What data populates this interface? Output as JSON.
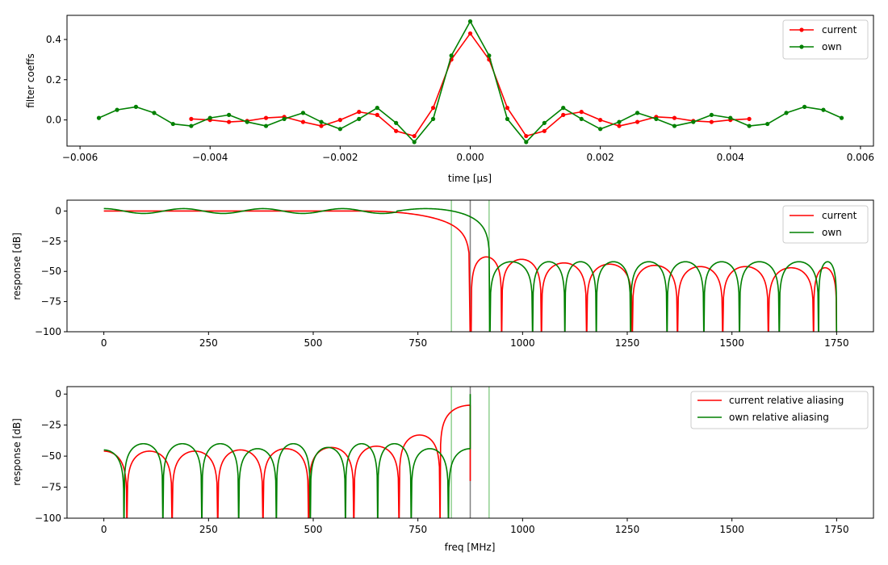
{
  "colors": {
    "current": "#ff0000",
    "own": "#008000",
    "band_edge": "#808080",
    "band_edge_own": "#90d090"
  },
  "chart_data": [
    {
      "type": "line",
      "xlabel": "time [μs]",
      "ylabel": "filter coeffs",
      "xlim": [
        -0.0062,
        0.0062
      ],
      "ylim": [
        -0.13,
        0.52
      ],
      "xticks": [
        -0.006,
        -0.004,
        -0.002,
        0.0,
        0.002,
        0.004,
        0.006
      ],
      "xtick_labels": [
        "−0.006",
        "−0.004",
        "−0.002",
        "0.000",
        "0.002",
        "0.004",
        "0.006"
      ],
      "yticks": [
        0.0,
        0.2,
        0.4
      ],
      "ytick_labels": [
        "0.0",
        "0.2",
        "0.4"
      ],
      "legend": "upper-right",
      "series": [
        {
          "name": "current",
          "color": "#ff0000",
          "markers": true,
          "x": [
            -0.00429,
            -0.004,
            -0.00371,
            -0.00343,
            -0.00314,
            -0.00286,
            -0.00257,
            -0.00229,
            -0.002,
            -0.00171,
            -0.00143,
            -0.00114,
            -0.00086,
            -0.00057,
            -0.00029,
            0.0,
            0.00029,
            0.00057,
            0.00086,
            0.00114,
            0.00143,
            0.00171,
            0.002,
            0.00229,
            0.00257,
            0.00286,
            0.00314,
            0.00343,
            0.00371,
            0.004,
            0.00429
          ],
          "y": [
            0.005,
            0.0,
            -0.01,
            -0.005,
            0.01,
            0.015,
            -0.01,
            -0.03,
            0.0,
            0.04,
            0.025,
            -0.055,
            -0.08,
            0.06,
            0.3,
            0.43,
            0.3,
            0.06,
            -0.08,
            -0.055,
            0.025,
            0.04,
            0.0,
            -0.03,
            -0.01,
            0.015,
            0.01,
            -0.005,
            -0.01,
            0.0,
            0.005
          ]
        },
        {
          "name": "own",
          "color": "#008000",
          "markers": true,
          "x": [
            -0.00571,
            -0.00543,
            -0.00514,
            -0.00486,
            -0.00457,
            -0.00429,
            -0.004,
            -0.00371,
            -0.00343,
            -0.00314,
            -0.00286,
            -0.00257,
            -0.00229,
            -0.002,
            -0.00171,
            -0.00143,
            -0.00114,
            -0.00086,
            -0.00057,
            -0.00029,
            0.0,
            0.00029,
            0.00057,
            0.00086,
            0.00114,
            0.00143,
            0.00171,
            0.002,
            0.00229,
            0.00257,
            0.00286,
            0.00314,
            0.00343,
            0.00371,
            0.004,
            0.00429,
            0.00457,
            0.00486,
            0.00514,
            0.00543,
            0.00571
          ],
          "y": [
            0.01,
            0.05,
            0.065,
            0.035,
            -0.02,
            -0.03,
            0.01,
            0.025,
            -0.01,
            -0.03,
            0.005,
            0.035,
            -0.01,
            -0.045,
            0.005,
            0.06,
            -0.015,
            -0.11,
            0.005,
            0.32,
            0.49,
            0.32,
            0.005,
            -0.11,
            -0.015,
            0.06,
            0.005,
            -0.045,
            -0.01,
            0.035,
            0.005,
            -0.03,
            -0.01,
            0.025,
            0.01,
            -0.03,
            -0.02,
            0.035,
            0.065,
            0.05,
            0.01
          ]
        }
      ]
    },
    {
      "type": "line",
      "xlabel": "",
      "ylabel": "response [dB]",
      "xlim": [
        -88,
        1838
      ],
      "ylim": [
        -100,
        9
      ],
      "xticks": [
        0,
        250,
        500,
        750,
        1000,
        1250,
        1500,
        1750
      ],
      "xtick_labels": [
        "0",
        "250",
        "500",
        "750",
        "1000",
        "1250",
        "1500",
        "1750"
      ],
      "yticks": [
        0,
        -25,
        -50,
        -75,
        -100
      ],
      "ytick_labels": [
        "0",
        "−25",
        "−50",
        "−75",
        "−100"
      ],
      "legend": "upper-right",
      "vlines": [
        {
          "x": 830,
          "color": "#90d090"
        },
        {
          "x": 875,
          "color": "#808080"
        },
        {
          "x": 920,
          "color": "#90d090"
        }
      ],
      "series": [
        {
          "name": "current",
          "color": "#ff0000",
          "passband_end": 620,
          "cutoff": 875,
          "nulls": [
            877,
            950,
            1045,
            1153,
            1262,
            1370,
            1478,
            1587,
            1695
          ],
          "sidelobe_peaks": [
            -38,
            -40,
            -43,
            -44,
            -45,
            -46,
            -46,
            -47,
            -47
          ]
        },
        {
          "name": "own",
          "color": "#008000",
          "ripple_db": 2,
          "ripple_period": 190,
          "peak_x": 768,
          "cutoff": 922,
          "nulls": [
            922,
            1024,
            1101,
            1176,
            1258,
            1345,
            1433,
            1518,
            1613,
            1707
          ],
          "sidelobe_peaks": [
            -42,
            -42,
            -42,
            -42,
            -42,
            -42,
            -42,
            -42,
            -42,
            -42
          ]
        }
      ]
    },
    {
      "type": "line",
      "xlabel": "freq [MHz]",
      "ylabel": "response [dB]",
      "xlim": [
        -88,
        1838
      ],
      "ylim": [
        -100,
        6
      ],
      "xticks": [
        0,
        250,
        500,
        750,
        1000,
        1250,
        1500,
        1750
      ],
      "xtick_labels": [
        "0",
        "250",
        "500",
        "750",
        "1000",
        "1250",
        "1500",
        "1750"
      ],
      "yticks": [
        0,
        -25,
        -50,
        -75,
        -100
      ],
      "ytick_labels": [
        "0",
        "−25",
        "−50",
        "−75",
        "−100"
      ],
      "legend": "upper-right",
      "vlines": [
        {
          "x": 830,
          "color": "#90d090"
        },
        {
          "x": 875,
          "color": "#808080"
        },
        {
          "x": 920,
          "color": "#90d090"
        }
      ],
      "series": [
        {
          "name": "current relative aliasing",
          "color": "#ff0000",
          "x_end": 875,
          "nulls": [
            55,
            163,
            272,
            380,
            489,
            597,
            705,
            803
          ],
          "peaks": [
            {
              "x": 0,
              "y": -46
            },
            {
              "x": 108,
              "y": -46
            },
            {
              "x": 217,
              "y": -46
            },
            {
              "x": 326,
              "y": -45
            },
            {
              "x": 433,
              "y": -44
            },
            {
              "x": 543,
              "y": -43
            },
            {
              "x": 651,
              "y": -42
            },
            {
              "x": 760,
              "y": -33
            },
            {
              "x": 860,
              "y": -9
            }
          ],
          "end_value": -70
        },
        {
          "name": "own relative aliasing",
          "color": "#008000",
          "x_end": 875,
          "nulls": [
            48,
            141,
            234,
            322,
            412,
            493,
            577,
            654,
            734,
            823
          ],
          "peaks": [
            {
              "x": 0,
              "y": -45
            },
            {
              "x": 95,
              "y": -40
            },
            {
              "x": 187,
              "y": -40
            },
            {
              "x": 278,
              "y": -40
            },
            {
              "x": 367,
              "y": -44
            },
            {
              "x": 452,
              "y": -40
            },
            {
              "x": 535,
              "y": -43
            },
            {
              "x": 615,
              "y": -40
            },
            {
              "x": 694,
              "y": -40
            },
            {
              "x": 778,
              "y": -44
            }
          ],
          "end_value": 0
        }
      ]
    }
  ]
}
